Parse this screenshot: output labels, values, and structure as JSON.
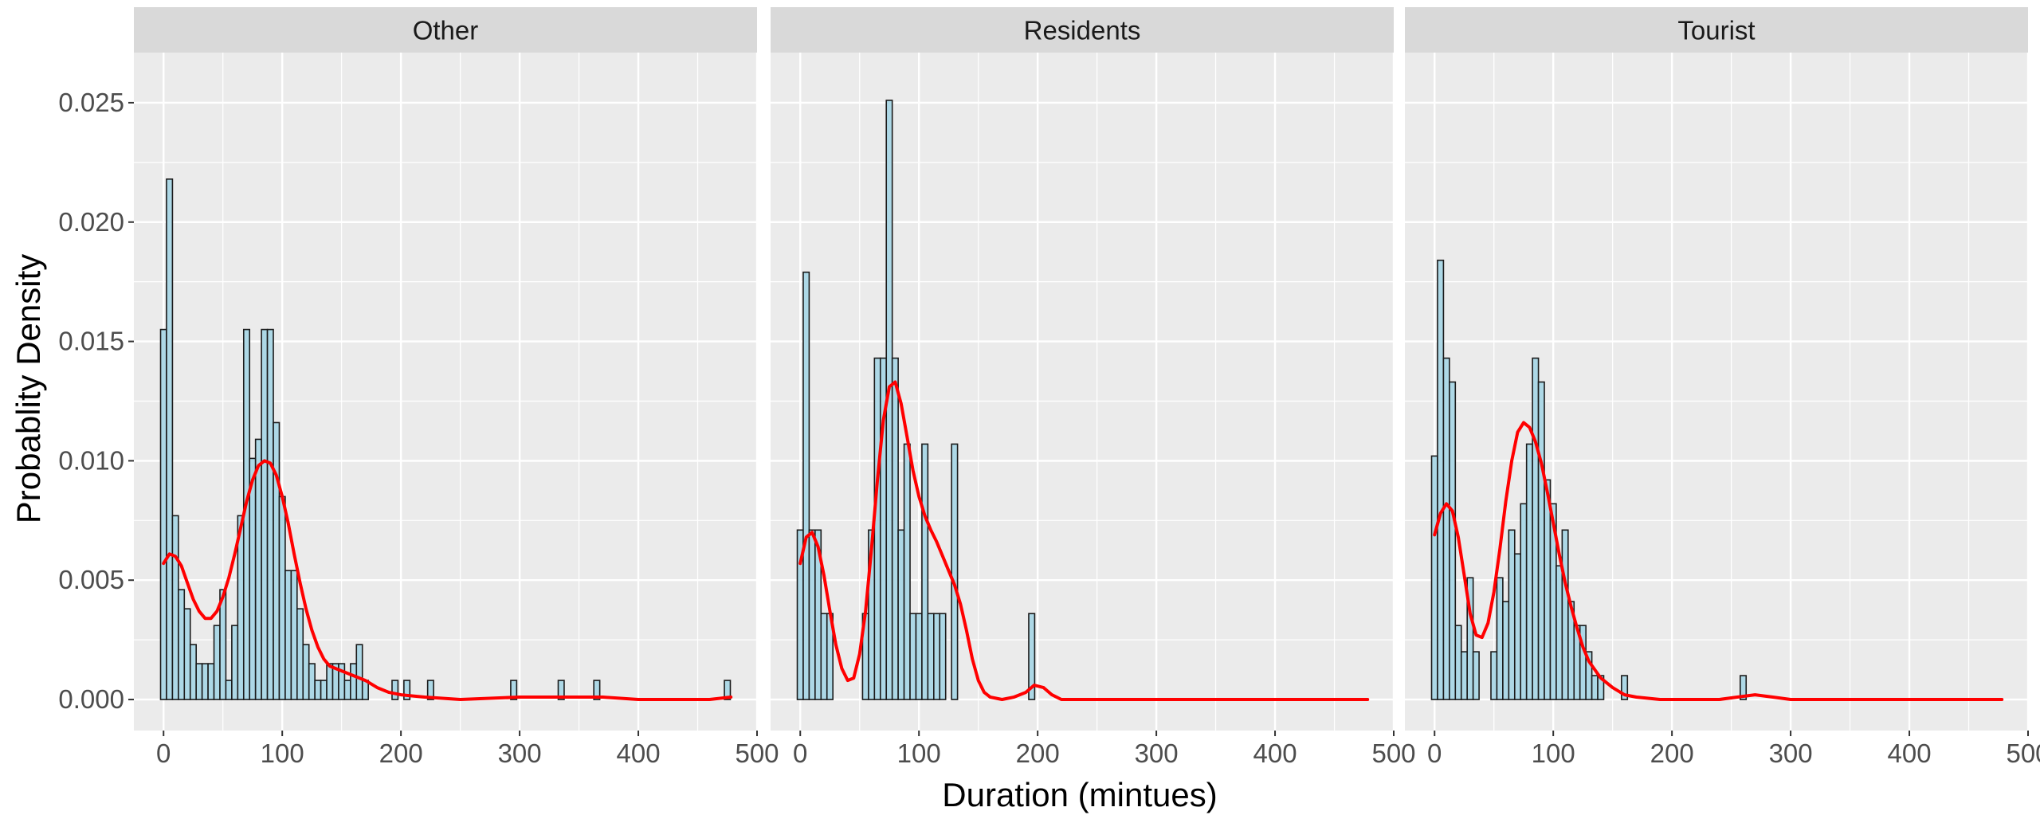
{
  "chart_data": {
    "type": "histogram",
    "ylabel": "Probablity Density",
    "xlabel": "Duration (mintues)",
    "xlim": [
      -25,
      500
    ],
    "ylim": [
      -0.0013,
      0.0271
    ],
    "xticks": [
      0,
      100,
      200,
      300,
      400,
      500
    ],
    "yticks": [
      0.0,
      0.005,
      0.01,
      0.015,
      0.02,
      0.025
    ],
    "ytick_labels": [
      "0.000",
      "0.005",
      "0.010",
      "0.015",
      "0.020",
      "0.025"
    ],
    "bin_width": 5,
    "grid": true,
    "colors": {
      "panel_bg": "#ebebeb",
      "strip_bg": "#d9d9d9",
      "grid_major": "#ffffff",
      "bar_fill": "#add8e6",
      "bar_stroke": "#1a1a1a",
      "density_line": "#ff0000"
    },
    "panels": [
      {
        "title": "Other",
        "bars": [
          {
            "x": 0,
            "y": 0.0155
          },
          {
            "x": 5,
            "y": 0.0218
          },
          {
            "x": 10,
            "y": 0.0077
          },
          {
            "x": 15,
            "y": 0.0046
          },
          {
            "x": 20,
            "y": 0.0038
          },
          {
            "x": 25,
            "y": 0.0023
          },
          {
            "x": 30,
            "y": 0.0015
          },
          {
            "x": 35,
            "y": 0.0015
          },
          {
            "x": 40,
            "y": 0.0015
          },
          {
            "x": 45,
            "y": 0.0031
          },
          {
            "x": 50,
            "y": 0.0046
          },
          {
            "x": 55,
            "y": 0.0008
          },
          {
            "x": 60,
            "y": 0.0031
          },
          {
            "x": 65,
            "y": 0.0077
          },
          {
            "x": 70,
            "y": 0.0155
          },
          {
            "x": 75,
            "y": 0.0101
          },
          {
            "x": 80,
            "y": 0.0109
          },
          {
            "x": 85,
            "y": 0.0155
          },
          {
            "x": 90,
            "y": 0.0155
          },
          {
            "x": 95,
            "y": 0.0116
          },
          {
            "x": 100,
            "y": 0.0085
          },
          {
            "x": 105,
            "y": 0.0054
          },
          {
            "x": 110,
            "y": 0.0054
          },
          {
            "x": 115,
            "y": 0.0038
          },
          {
            "x": 120,
            "y": 0.0023
          },
          {
            "x": 125,
            "y": 0.0015
          },
          {
            "x": 130,
            "y": 0.0008
          },
          {
            "x": 135,
            "y": 0.0008
          },
          {
            "x": 140,
            "y": 0.0015
          },
          {
            "x": 145,
            "y": 0.0015
          },
          {
            "x": 150,
            "y": 0.0015
          },
          {
            "x": 155,
            "y": 0.0008
          },
          {
            "x": 160,
            "y": 0.0015
          },
          {
            "x": 165,
            "y": 0.0023
          },
          {
            "x": 170,
            "y": 0.0008
          },
          {
            "x": 195,
            "y": 0.0008
          },
          {
            "x": 205,
            "y": 0.0008
          },
          {
            "x": 225,
            "y": 0.0008
          },
          {
            "x": 295,
            "y": 0.0008
          },
          {
            "x": 335,
            "y": 0.0008
          },
          {
            "x": 365,
            "y": 0.0008
          },
          {
            "x": 475,
            "y": 0.0008
          }
        ],
        "density": [
          [
            0,
            0.0057
          ],
          [
            5,
            0.0061
          ],
          [
            10,
            0.006
          ],
          [
            15,
            0.0056
          ],
          [
            20,
            0.0049
          ],
          [
            25,
            0.0042
          ],
          [
            30,
            0.0037
          ],
          [
            35,
            0.0034
          ],
          [
            40,
            0.0034
          ],
          [
            45,
            0.0037
          ],
          [
            50,
            0.0043
          ],
          [
            55,
            0.0051
          ],
          [
            60,
            0.0061
          ],
          [
            65,
            0.0072
          ],
          [
            70,
            0.0083
          ],
          [
            75,
            0.0092
          ],
          [
            80,
            0.0098
          ],
          [
            85,
            0.01
          ],
          [
            90,
            0.0099
          ],
          [
            95,
            0.0094
          ],
          [
            100,
            0.0085
          ],
          [
            105,
            0.0074
          ],
          [
            110,
            0.0061
          ],
          [
            115,
            0.0049
          ],
          [
            120,
            0.0038
          ],
          [
            125,
            0.0029
          ],
          [
            130,
            0.0022
          ],
          [
            135,
            0.0017
          ],
          [
            140,
            0.0014
          ],
          [
            150,
            0.0012
          ],
          [
            160,
            0.001
          ],
          [
            170,
            0.0008
          ],
          [
            180,
            0.0005
          ],
          [
            190,
            0.0003
          ],
          [
            200,
            0.0002
          ],
          [
            220,
            0.0001
          ],
          [
            250,
            0.0
          ],
          [
            300,
            0.0001
          ],
          [
            340,
            0.0001
          ],
          [
            370,
            0.0001
          ],
          [
            400,
            0.0
          ],
          [
            460,
            0.0
          ],
          [
            478,
            0.0001
          ]
        ]
      },
      {
        "title": "Residents",
        "bars": [
          {
            "x": 0,
            "y": 0.0071
          },
          {
            "x": 5,
            "y": 0.0179
          },
          {
            "x": 10,
            "y": 0.0071
          },
          {
            "x": 15,
            "y": 0.0071
          },
          {
            "x": 20,
            "y": 0.0036
          },
          {
            "x": 25,
            "y": 0.0036
          },
          {
            "x": 55,
            "y": 0.0036
          },
          {
            "x": 60,
            "y": 0.0071
          },
          {
            "x": 65,
            "y": 0.0143
          },
          {
            "x": 70,
            "y": 0.0143
          },
          {
            "x": 75,
            "y": 0.0251
          },
          {
            "x": 80,
            "y": 0.0143
          },
          {
            "x": 85,
            "y": 0.0071
          },
          {
            "x": 90,
            "y": 0.0107
          },
          {
            "x": 95,
            "y": 0.0036
          },
          {
            "x": 100,
            "y": 0.0036
          },
          {
            "x": 105,
            "y": 0.0107
          },
          {
            "x": 110,
            "y": 0.0036
          },
          {
            "x": 115,
            "y": 0.0036
          },
          {
            "x": 120,
            "y": 0.0036
          },
          {
            "x": 130,
            "y": 0.0107
          },
          {
            "x": 195,
            "y": 0.0036
          }
        ],
        "density": [
          [
            0,
            0.0057
          ],
          [
            5,
            0.0068
          ],
          [
            10,
            0.007
          ],
          [
            15,
            0.0064
          ],
          [
            20,
            0.0052
          ],
          [
            25,
            0.0037
          ],
          [
            30,
            0.0023
          ],
          [
            35,
            0.0013
          ],
          [
            40,
            0.0008
          ],
          [
            45,
            0.0009
          ],
          [
            50,
            0.0019
          ],
          [
            55,
            0.0037
          ],
          [
            60,
            0.0063
          ],
          [
            65,
            0.0092
          ],
          [
            70,
            0.0117
          ],
          [
            75,
            0.0131
          ],
          [
            80,
            0.0133
          ],
          [
            85,
            0.0124
          ],
          [
            90,
            0.011
          ],
          [
            95,
            0.0096
          ],
          [
            100,
            0.0085
          ],
          [
            105,
            0.0077
          ],
          [
            110,
            0.0071
          ],
          [
            115,
            0.0066
          ],
          [
            120,
            0.006
          ],
          [
            125,
            0.0054
          ],
          [
            130,
            0.0048
          ],
          [
            135,
            0.004
          ],
          [
            140,
            0.0029
          ],
          [
            145,
            0.0017
          ],
          [
            150,
            0.0008
          ],
          [
            155,
            0.0003
          ],
          [
            160,
            0.0001
          ],
          [
            170,
            0.0
          ],
          [
            180,
            0.0001
          ],
          [
            190,
            0.0003
          ],
          [
            197,
            0.0006
          ],
          [
            205,
            0.0005
          ],
          [
            212,
            0.0002
          ],
          [
            220,
            0.0
          ],
          [
            250,
            0.0
          ],
          [
            350,
            0.0
          ],
          [
            478,
            0.0
          ]
        ]
      },
      {
        "title": "Tourist",
        "bars": [
          {
            "x": 0,
            "y": 0.0102
          },
          {
            "x": 5,
            "y": 0.0184
          },
          {
            "x": 10,
            "y": 0.0143
          },
          {
            "x": 15,
            "y": 0.0133
          },
          {
            "x": 20,
            "y": 0.0031
          },
          {
            "x": 25,
            "y": 0.002
          },
          {
            "x": 30,
            "y": 0.0051
          },
          {
            "x": 35,
            "y": 0.002
          },
          {
            "x": 50,
            "y": 0.002
          },
          {
            "x": 55,
            "y": 0.0051
          },
          {
            "x": 60,
            "y": 0.0041
          },
          {
            "x": 65,
            "y": 0.0071
          },
          {
            "x": 70,
            "y": 0.0061
          },
          {
            "x": 75,
            "y": 0.0082
          },
          {
            "x": 80,
            "y": 0.0107
          },
          {
            "x": 85,
            "y": 0.0143
          },
          {
            "x": 90,
            "y": 0.0133
          },
          {
            "x": 95,
            "y": 0.0092
          },
          {
            "x": 100,
            "y": 0.0082
          },
          {
            "x": 105,
            "y": 0.0056
          },
          {
            "x": 110,
            "y": 0.0071
          },
          {
            "x": 115,
            "y": 0.0041
          },
          {
            "x": 120,
            "y": 0.0031
          },
          {
            "x": 125,
            "y": 0.0031
          },
          {
            "x": 130,
            "y": 0.002
          },
          {
            "x": 135,
            "y": 0.001
          },
          {
            "x": 140,
            "y": 0.001
          },
          {
            "x": 160,
            "y": 0.001
          },
          {
            "x": 260,
            "y": 0.001
          }
        ],
        "density": [
          [
            0,
            0.0069
          ],
          [
            5,
            0.0078
          ],
          [
            10,
            0.0082
          ],
          [
            15,
            0.0079
          ],
          [
            20,
            0.0068
          ],
          [
            25,
            0.0052
          ],
          [
            30,
            0.0036
          ],
          [
            35,
            0.0027
          ],
          [
            40,
            0.0026
          ],
          [
            45,
            0.0032
          ],
          [
            50,
            0.0045
          ],
          [
            55,
            0.0063
          ],
          [
            60,
            0.0083
          ],
          [
            65,
            0.01
          ],
          [
            70,
            0.0112
          ],
          [
            75,
            0.0116
          ],
          [
            80,
            0.0114
          ],
          [
            85,
            0.0108
          ],
          [
            90,
            0.0099
          ],
          [
            95,
            0.0087
          ],
          [
            100,
            0.0074
          ],
          [
            105,
            0.0061
          ],
          [
            110,
            0.0049
          ],
          [
            115,
            0.0039
          ],
          [
            120,
            0.003
          ],
          [
            125,
            0.0022
          ],
          [
            130,
            0.0016
          ],
          [
            140,
            0.0009
          ],
          [
            150,
            0.0005
          ],
          [
            160,
            0.0002
          ],
          [
            170,
            0.0001
          ],
          [
            190,
            0.0
          ],
          [
            240,
            0.0
          ],
          [
            255,
            0.0001
          ],
          [
            270,
            0.0002
          ],
          [
            285,
            0.0001
          ],
          [
            300,
            0.0
          ],
          [
            400,
            0.0
          ],
          [
            478,
            0.0
          ]
        ]
      }
    ]
  }
}
